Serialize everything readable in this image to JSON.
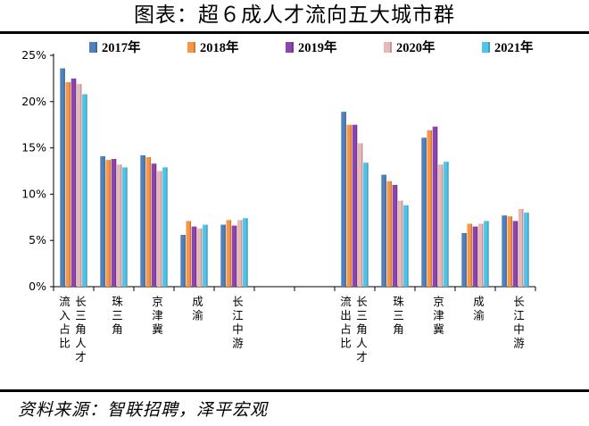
{
  "title": "图表：超６成人才流向五大城市群",
  "source": "资料来源：智联招聘，泽平宏观",
  "chart_data": {
    "type": "bar",
    "groups": [
      {
        "label": "流入占比",
        "categories": [
          "长三角人才",
          "珠三角",
          "京津冀",
          "成渝",
          "长江中游"
        ]
      },
      {
        "label": "流出占比",
        "categories": [
          "长三角人才",
          "珠三角",
          "京津冀",
          "成渝",
          "长江中游"
        ]
      }
    ],
    "series": [
      {
        "name": "2017年",
        "color": "#4f81bd",
        "inflow": [
          23.6,
          14.1,
          14.2,
          5.6,
          6.7
        ],
        "outflow": [
          18.9,
          12.1,
          16.1,
          5.8,
          7.7
        ]
      },
      {
        "name": "2018年",
        "color": "#f79646",
        "inflow": [
          22.1,
          13.7,
          14.0,
          7.1,
          7.2
        ],
        "outflow": [
          17.5,
          11.4,
          16.9,
          6.8,
          7.6
        ]
      },
      {
        "name": "2019年",
        "color": "#8e44ad",
        "inflow": [
          22.5,
          13.8,
          13.3,
          6.5,
          6.6
        ],
        "outflow": [
          17.5,
          11.0,
          17.3,
          6.5,
          7.1
        ]
      },
      {
        "name": "2020年",
        "color": "#e6b8b7",
        "inflow": [
          21.9,
          13.2,
          12.5,
          6.3,
          7.2
        ],
        "outflow": [
          15.5,
          9.3,
          13.2,
          6.8,
          8.4
        ]
      },
      {
        "name": "2021年",
        "color": "#4fc3e8",
        "inflow": [
          20.8,
          12.9,
          12.9,
          6.7,
          7.4
        ],
        "outflow": [
          13.4,
          8.8,
          13.5,
          7.1,
          8.0
        ]
      }
    ],
    "yticks": [
      "0%",
      "5%",
      "10%",
      "15%",
      "20%",
      "25%"
    ],
    "ylim": [
      0,
      25
    ],
    "legend": "top"
  }
}
